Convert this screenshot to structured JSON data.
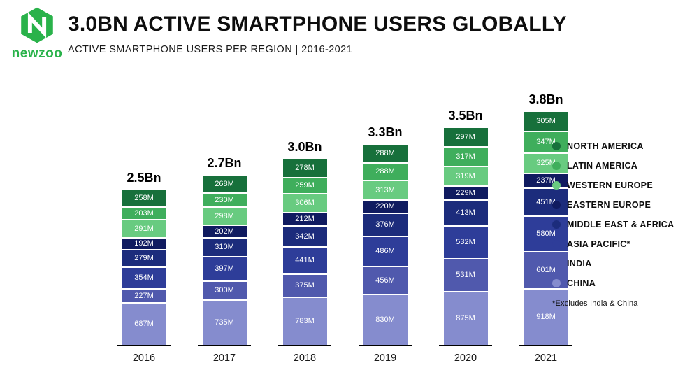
{
  "logo": {
    "brand": "newzoo"
  },
  "header": {
    "title": "3.0BN ACTIVE SMARTPHONE USERS GLOBALLY",
    "subtitle": "ACTIVE SMARTPHONE USERS PER REGION | 2016-2021"
  },
  "legend": {
    "footnote": "*Excludes India & China"
  },
  "chart_data": {
    "type": "bar",
    "stacked": true,
    "title": "3.0BN ACTIVE SMARTPHONE USERS GLOBALLY",
    "subtitle": "ACTIVE SMARTPHONE USERS PER REGION | 2016-2021",
    "unit": "M",
    "categories": [
      "2016",
      "2017",
      "2018",
      "2019",
      "2020",
      "2021"
    ],
    "totals": [
      "2.5Bn",
      "2.7Bn",
      "3.0Bn",
      "3.3Bn",
      "3.5Bn",
      "3.8Bn"
    ],
    "legend_position": "right",
    "series_order": "top-to-bottom",
    "series": [
      {
        "name": "NORTH AMERICA",
        "color": "#17703b",
        "values": [
          258,
          268,
          278,
          288,
          297,
          305
        ]
      },
      {
        "name": "LATIN AMERICA",
        "color": "#3fae5c",
        "values": [
          203,
          230,
          259,
          288,
          317,
          347
        ]
      },
      {
        "name": "WESTERN EUROPE",
        "color": "#68cb80",
        "values": [
          291,
          298,
          306,
          313,
          319,
          325
        ]
      },
      {
        "name": "EASTERN EUROPE",
        "color": "#101b60",
        "values": [
          192,
          202,
          212,
          220,
          229,
          237
        ]
      },
      {
        "name": "MIDDLE EAST & AFRICA",
        "color": "#1c2c7c",
        "values": [
          279,
          310,
          342,
          376,
          413,
          451
        ]
      },
      {
        "name": "ASIA PACIFIC*",
        "color": "#2e3d99",
        "values": [
          354,
          397,
          441,
          486,
          532,
          580
        ]
      },
      {
        "name": "INDIA",
        "color": "#5059ad",
        "values": [
          227,
          300,
          375,
          456,
          531,
          601
        ]
      },
      {
        "name": "CHINA",
        "color": "#858cce",
        "values": [
          687,
          735,
          783,
          830,
          875,
          918
        ]
      }
    ],
    "footnote": "*Excludes India & China"
  }
}
